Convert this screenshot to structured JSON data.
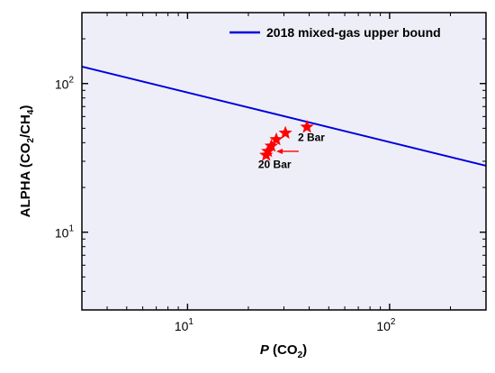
{
  "chart_data": {
    "type": "line",
    "title": "",
    "xlabel": {
      "italic": "P",
      "prefix": " (CO",
      "sub": "2",
      "suffix": ")"
    },
    "ylabel": {
      "prefix": "ALPHA (CO",
      "sub1": "2",
      "mid": "/CH",
      "sub2": "4",
      "suffix": ")"
    },
    "xscale": "log",
    "yscale": "log",
    "xlim": [
      3,
      300
    ],
    "ylim": [
      3,
      300
    ],
    "grid": false,
    "legend_position": "top-right",
    "x_ticks": [
      {
        "value": 10,
        "base": "10",
        "exp": "1"
      },
      {
        "value": 100,
        "base": "10",
        "exp": "2"
      }
    ],
    "y_ticks": [
      {
        "value": 10,
        "base": "10",
        "exp": "1"
      },
      {
        "value": 100,
        "base": "10",
        "exp": "2"
      }
    ],
    "series": [
      {
        "name": "2018 mixed-gas upper bound",
        "kind": "line",
        "color": "#0000dd",
        "x": [
          3,
          300
        ],
        "y": [
          130,
          28
        ]
      },
      {
        "kind": "scatter",
        "marker": "star",
        "color": "#ff0000",
        "x": [
          39,
          30.5,
          27.5,
          26,
          25,
          24.5
        ],
        "y": [
          51,
          46.5,
          42,
          38,
          35,
          33
        ]
      }
    ],
    "annotations": [
      {
        "text": "2 Bar",
        "x": 41,
        "y": 41
      },
      {
        "text": "20 Bar",
        "x": 27,
        "y": 27
      },
      {
        "type": "arrow",
        "color": "#ff0000",
        "x_from": 35.5,
        "x_to": 27.5,
        "y": 35
      }
    ]
  }
}
